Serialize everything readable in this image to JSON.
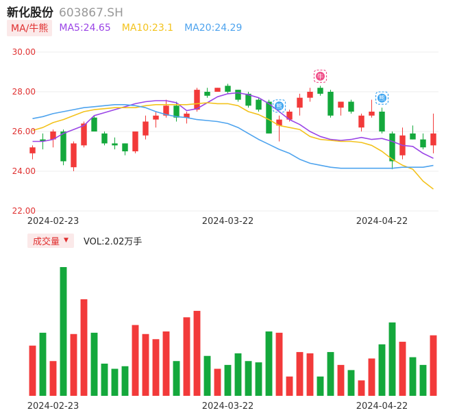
{
  "header": {
    "stock_name": "新化股份",
    "stock_code": "603867.SH"
  },
  "ma_legend": {
    "toggle_label": "MA/牛熊",
    "ma5": "MA5:24.65",
    "ma10": "MA10:23.1",
    "ma20": "MA20:24.29"
  },
  "volume_legend": {
    "toggle_label": "成交量",
    "value": "VOL:2.02万手"
  },
  "colors": {
    "up": "#f23a3a",
    "down": "#14a83c",
    "ma5": "#9a44e6",
    "ma10": "#f3c21b",
    "ma20": "#4da3ee",
    "grid": "#ececec"
  },
  "markers": [
    {
      "index": 24,
      "label": "熊",
      "color": "#3aa3f0"
    },
    {
      "index": 28,
      "label": "牛",
      "color": "#f0508a"
    },
    {
      "index": 34,
      "label": "熊",
      "color": "#3aa3f0"
    }
  ],
  "chart_data": [
    {
      "type": "candlestick",
      "y_ticks": [
        "30.00",
        "28.00",
        "26.00",
        "24.00",
        "22.00"
      ],
      "ylim": [
        22,
        30
      ],
      "x_tick_labels": [
        {
          "index": 2,
          "label": "2024-02-23"
        },
        {
          "index": 19,
          "label": "2024-03-22"
        },
        {
          "index": 34,
          "label": "2024-04-22"
        }
      ],
      "ohlc": [
        {
          "o": 24.9,
          "h": 25.3,
          "l": 24.6,
          "c": 25.2
        },
        {
          "o": 25.6,
          "h": 25.9,
          "l": 25.1,
          "c": 25.5
        },
        {
          "o": 25.6,
          "h": 26.1,
          "l": 25.2,
          "c": 26.0
        },
        {
          "o": 26.0,
          "h": 26.1,
          "l": 24.3,
          "c": 24.5
        },
        {
          "o": 24.2,
          "h": 25.5,
          "l": 24.0,
          "c": 25.4
        },
        {
          "o": 25.3,
          "h": 26.5,
          "l": 25.2,
          "c": 26.4
        },
        {
          "o": 26.7,
          "h": 26.8,
          "l": 26.0,
          "c": 26.0
        },
        {
          "o": 25.9,
          "h": 26.0,
          "l": 25.3,
          "c": 25.4
        },
        {
          "o": 25.4,
          "h": 25.7,
          "l": 25.1,
          "c": 25.3
        },
        {
          "o": 25.4,
          "h": 25.4,
          "l": 24.8,
          "c": 25.0
        },
        {
          "o": 25.0,
          "h": 26.0,
          "l": 24.9,
          "c": 26.0
        },
        {
          "o": 25.8,
          "h": 26.8,
          "l": 25.6,
          "c": 26.5
        },
        {
          "o": 26.6,
          "h": 27.0,
          "l": 26.2,
          "c": 26.8
        },
        {
          "o": 26.8,
          "h": 27.6,
          "l": 26.7,
          "c": 27.3
        },
        {
          "o": 27.3,
          "h": 27.5,
          "l": 26.5,
          "c": 26.7
        },
        {
          "o": 26.7,
          "h": 27.0,
          "l": 26.4,
          "c": 26.9
        },
        {
          "o": 27.1,
          "h": 28.2,
          "l": 27.0,
          "c": 28.1
        },
        {
          "o": 28.0,
          "h": 28.2,
          "l": 27.7,
          "c": 27.8
        },
        {
          "o": 28.0,
          "h": 28.2,
          "l": 28.0,
          "c": 28.2
        },
        {
          "o": 28.3,
          "h": 28.4,
          "l": 27.9,
          "c": 28.0
        },
        {
          "o": 28.1,
          "h": 28.1,
          "l": 27.5,
          "c": 27.6
        },
        {
          "o": 27.9,
          "h": 28.0,
          "l": 27.2,
          "c": 27.3
        },
        {
          "o": 27.6,
          "h": 27.7,
          "l": 27.0,
          "c": 27.1
        },
        {
          "o": 27.5,
          "h": 27.6,
          "l": 25.9,
          "c": 25.9
        },
        {
          "o": 26.3,
          "h": 26.8,
          "l": 25.5,
          "c": 26.6
        },
        {
          "o": 26.6,
          "h": 27.1,
          "l": 26.5,
          "c": 27.0
        },
        {
          "o": 27.2,
          "h": 27.9,
          "l": 26.8,
          "c": 27.7
        },
        {
          "o": 27.7,
          "h": 28.2,
          "l": 27.5,
          "c": 28.0
        },
        {
          "o": 28.2,
          "h": 28.3,
          "l": 27.8,
          "c": 27.9
        },
        {
          "o": 28.0,
          "h": 28.1,
          "l": 26.7,
          "c": 26.8
        },
        {
          "o": 27.2,
          "h": 27.5,
          "l": 26.8,
          "c": 27.5
        },
        {
          "o": 27.5,
          "h": 27.6,
          "l": 26.9,
          "c": 27.0
        },
        {
          "o": 26.2,
          "h": 26.9,
          "l": 26.0,
          "c": 26.8
        },
        {
          "o": 26.8,
          "h": 27.6,
          "l": 26.7,
          "c": 27.0
        },
        {
          "o": 27.0,
          "h": 27.2,
          "l": 25.9,
          "c": 26.0
        },
        {
          "o": 25.9,
          "h": 26.0,
          "l": 24.1,
          "c": 24.5
        },
        {
          "o": 24.8,
          "h": 26.2,
          "l": 24.6,
          "c": 25.8
        },
        {
          "o": 25.9,
          "h": 26.3,
          "l": 25.6,
          "c": 25.6
        },
        {
          "o": 25.6,
          "h": 25.9,
          "l": 25.1,
          "c": 25.2
        },
        {
          "o": 25.3,
          "h": 26.9,
          "l": 24.9,
          "c": 25.9
        }
      ],
      "ma5": [
        25.5,
        25.5,
        25.6,
        25.9,
        26.1,
        26.3,
        26.8,
        26.95,
        27.1,
        27.25,
        27.4,
        27.5,
        27.55,
        27.55,
        27.45,
        27.05,
        27.15,
        27.45,
        27.75,
        27.9,
        27.95,
        27.85,
        27.7,
        27.4,
        27.0,
        26.6,
        26.35,
        26.0,
        25.75,
        25.6,
        25.55,
        25.6,
        25.7,
        25.6,
        25.65,
        25.5,
        25.3,
        25.25,
        24.9,
        24.65
      ],
      "ma10": [
        26.05,
        26.2,
        26.45,
        26.6,
        26.8,
        27.0,
        27.1,
        27.15,
        27.2,
        27.2,
        27.2,
        27.3,
        27.35,
        27.35,
        27.35,
        27.35,
        27.4,
        27.45,
        27.4,
        27.4,
        27.3,
        27.0,
        26.85,
        26.6,
        26.3,
        26.2,
        26.1,
        25.75,
        25.6,
        25.55,
        25.5,
        25.5,
        25.45,
        25.3,
        25.0,
        24.6,
        24.3,
        24.1,
        23.5,
        23.1
      ],
      "ma20": [
        26.65,
        26.75,
        26.9,
        27.0,
        27.1,
        27.2,
        27.25,
        27.3,
        27.35,
        27.35,
        27.3,
        27.2,
        27.0,
        26.85,
        26.75,
        26.7,
        26.6,
        26.55,
        26.5,
        26.4,
        26.2,
        25.9,
        25.6,
        25.35,
        25.1,
        24.9,
        24.6,
        24.4,
        24.3,
        24.2,
        24.15,
        24.15,
        24.15,
        24.15,
        24.15,
        24.15,
        24.2,
        24.2,
        24.2,
        24.29
      ]
    },
    {
      "type": "bar",
      "name": "成交量",
      "relative_values": [
        0.39,
        0.49,
        0.27,
        1.0,
        0.48,
        0.75,
        0.49,
        0.25,
        0.21,
        0.23,
        0.55,
        0.48,
        0.44,
        0.5,
        0.27,
        0.61,
        0.66,
        0.31,
        0.21,
        0.24,
        0.33,
        0.27,
        0.26,
        0.5,
        0.49,
        0.15,
        0.34,
        0.33,
        0.15,
        0.34,
        0.24,
        0.2,
        0.12,
        0.29,
        0.4,
        0.57,
        0.42,
        0.3,
        0.24,
        0.47
      ],
      "x_tick_labels": [
        {
          "index": 2,
          "label": "2024-02-23"
        },
        {
          "index": 19,
          "label": "2024-03-22"
        },
        {
          "index": 34,
          "label": "2024-04-22"
        }
      ]
    }
  ]
}
